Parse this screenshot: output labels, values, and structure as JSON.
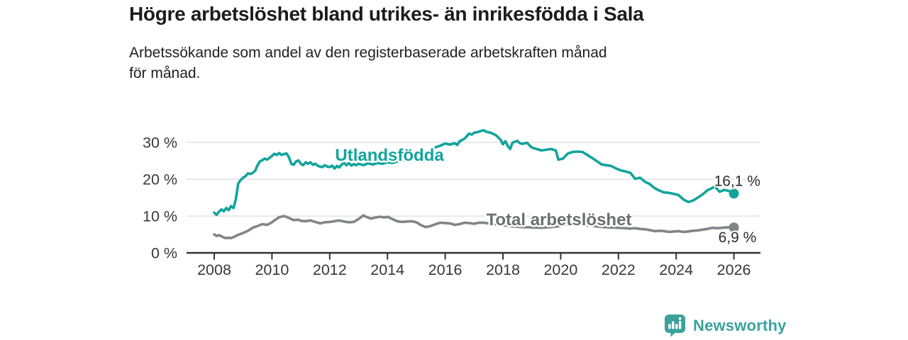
{
  "header": {
    "title": "Högre arbetslöshet bland utrikes- än inrikesfödda i Sala",
    "subtitle": "Arbetssökande som andel av den registerbaserade arbetskraften månad för månad."
  },
  "footer": {
    "brand": "Newsworthy",
    "brand_color": "#3ba29b",
    "logo_icon": "speech-bubble-bar-chart"
  },
  "colors": {
    "teal_series": "#12a49c",
    "gray_series": "#828487",
    "gray_label": "#6d6e71",
    "gridline": "#dcdcdc",
    "axis": "#333333",
    "tick_text": "#383838",
    "value_text": "#2d2d2d"
  },
  "chart_data": {
    "type": "line",
    "title": "Högre arbetslöshet bland utrikes- än inrikesfödda i Sala",
    "subtitle": "Arbetssökande som andel av den registerbaserade arbetskraften månad för månad.",
    "xlabel": "",
    "ylabel": "",
    "grid": "horizontal",
    "legend_position": "inline-labels",
    "x_axis": {
      "range": [
        2007.05,
        2026.92
      ],
      "ticks": [
        {
          "value": 2008,
          "label": "2008"
        },
        {
          "value": 2010,
          "label": "2010"
        },
        {
          "value": 2012,
          "label": "2012"
        },
        {
          "value": 2014,
          "label": "2014"
        },
        {
          "value": 2016,
          "label": "2016"
        },
        {
          "value": 2018,
          "label": "2018"
        },
        {
          "value": 2020,
          "label": "2020"
        },
        {
          "value": 2022,
          "label": "2022"
        },
        {
          "value": 2024,
          "label": "2024"
        },
        {
          "value": 2026,
          "label": "2026"
        }
      ]
    },
    "y_axis": {
      "range": [
        0,
        35
      ],
      "unit": "%",
      "ticks": [
        {
          "value": 0,
          "label": "0 %"
        },
        {
          "value": 10,
          "label": "10 %"
        },
        {
          "value": 20,
          "label": "20 %"
        },
        {
          "value": 30,
          "label": "30 %"
        }
      ]
    },
    "series": [
      {
        "name": "Utlandsfödda",
        "color": "#12a49c",
        "label_color": "#12a49c",
        "label_pos": {
          "x": 2014.07,
          "y": 26.5
        },
        "end_label": "16,1 %",
        "end_label_offset": {
          "dx": -28,
          "dy": -11
        },
        "points": [
          [
            2008.0,
            10.9
          ],
          [
            2008.08,
            10.3
          ],
          [
            2008.17,
            11.2
          ],
          [
            2008.25,
            11.8
          ],
          [
            2008.33,
            11.3
          ],
          [
            2008.42,
            12.2
          ],
          [
            2008.5,
            11.6
          ],
          [
            2008.58,
            12.7
          ],
          [
            2008.67,
            12.2
          ],
          [
            2008.75,
            14.6
          ],
          [
            2008.83,
            18.8
          ],
          [
            2008.92,
            19.8
          ],
          [
            2009.0,
            20.4
          ],
          [
            2009.08,
            20.8
          ],
          [
            2009.17,
            21.6
          ],
          [
            2009.25,
            21.4
          ],
          [
            2009.33,
            21.7
          ],
          [
            2009.42,
            22.3
          ],
          [
            2009.5,
            23.8
          ],
          [
            2009.58,
            24.8
          ],
          [
            2009.67,
            25.2
          ],
          [
            2009.75,
            25.6
          ],
          [
            2009.83,
            25.3
          ],
          [
            2009.92,
            25.8
          ],
          [
            2010.0,
            26.3
          ],
          [
            2010.08,
            26.9
          ],
          [
            2010.17,
            26.6
          ],
          [
            2010.25,
            27.1
          ],
          [
            2010.33,
            26.6
          ],
          [
            2010.42,
            26.8
          ],
          [
            2010.5,
            27.0
          ],
          [
            2010.58,
            26.1
          ],
          [
            2010.67,
            24.2
          ],
          [
            2010.75,
            23.9
          ],
          [
            2010.83,
            24.8
          ],
          [
            2010.92,
            25.1
          ],
          [
            2011.0,
            24.2
          ],
          [
            2011.08,
            23.8
          ],
          [
            2011.17,
            24.6
          ],
          [
            2011.25,
            24.2
          ],
          [
            2011.33,
            24.6
          ],
          [
            2011.42,
            23.9
          ],
          [
            2011.5,
            24.2
          ],
          [
            2011.58,
            23.7
          ],
          [
            2011.67,
            23.4
          ],
          [
            2011.75,
            23.3
          ],
          [
            2011.83,
            23.8
          ],
          [
            2011.92,
            23.4
          ],
          [
            2012.0,
            23.3
          ],
          [
            2012.08,
            23.7
          ],
          [
            2012.17,
            22.9
          ],
          [
            2012.25,
            23.6
          ],
          [
            2012.33,
            23.2
          ],
          [
            2012.42,
            24.0
          ],
          [
            2012.5,
            24.4
          ],
          [
            2012.58,
            23.8
          ],
          [
            2012.67,
            24.4
          ],
          [
            2012.75,
            23.7
          ],
          [
            2012.83,
            24.1
          ],
          [
            2012.92,
            23.8
          ],
          [
            2013.0,
            24.2
          ],
          [
            2013.17,
            23.8
          ],
          [
            2013.33,
            24.3
          ],
          [
            2013.5,
            24.0
          ],
          [
            2013.67,
            24.4
          ],
          [
            2013.83,
            24.2
          ],
          [
            2014.0,
            24.6
          ],
          [
            2014.17,
            24.4
          ],
          [
            2014.33,
            24.8
          ],
          [
            2014.5,
            25.1
          ],
          [
            2014.67,
            25.4
          ],
          [
            2014.83,
            25.2
          ],
          [
            2015.0,
            25.8
          ],
          [
            2015.17,
            26.4
          ],
          [
            2015.33,
            27.2
          ],
          [
            2015.5,
            28.0
          ],
          [
            2015.67,
            28.7
          ],
          [
            2015.83,
            29.1
          ],
          [
            2016.0,
            29.7
          ],
          [
            2016.17,
            29.4
          ],
          [
            2016.33,
            29.8
          ],
          [
            2016.42,
            29.3
          ],
          [
            2016.5,
            30.3
          ],
          [
            2016.67,
            31.0
          ],
          [
            2016.83,
            32.4
          ],
          [
            2016.92,
            32.1
          ],
          [
            2017.0,
            32.6
          ],
          [
            2017.17,
            32.9
          ],
          [
            2017.33,
            33.3
          ],
          [
            2017.42,
            32.9
          ],
          [
            2017.58,
            32.6
          ],
          [
            2017.75,
            32.0
          ],
          [
            2017.83,
            31.4
          ],
          [
            2017.92,
            30.7
          ],
          [
            2018.0,
            29.5
          ],
          [
            2018.08,
            30.3
          ],
          [
            2018.17,
            29.0
          ],
          [
            2018.25,
            28.2
          ],
          [
            2018.33,
            29.9
          ],
          [
            2018.42,
            30.2
          ],
          [
            2018.5,
            30.4
          ],
          [
            2018.58,
            29.8
          ],
          [
            2018.67,
            29.6
          ],
          [
            2018.83,
            29.9
          ],
          [
            2019.0,
            28.6
          ],
          [
            2019.17,
            28.2
          ],
          [
            2019.33,
            27.8
          ],
          [
            2019.5,
            28.0
          ],
          [
            2019.67,
            28.2
          ],
          [
            2019.83,
            27.8
          ],
          [
            2019.92,
            25.3
          ],
          [
            2020.08,
            25.6
          ],
          [
            2020.25,
            27.0
          ],
          [
            2020.42,
            27.4
          ],
          [
            2020.58,
            27.5
          ],
          [
            2020.75,
            27.4
          ],
          [
            2020.92,
            26.6
          ],
          [
            2021.08,
            25.8
          ],
          [
            2021.25,
            24.9
          ],
          [
            2021.42,
            24.0
          ],
          [
            2021.58,
            23.8
          ],
          [
            2021.75,
            23.6
          ],
          [
            2021.92,
            22.9
          ],
          [
            2022.08,
            22.4
          ],
          [
            2022.25,
            22.1
          ],
          [
            2022.42,
            21.7
          ],
          [
            2022.58,
            20.1
          ],
          [
            2022.75,
            20.4
          ],
          [
            2022.92,
            19.3
          ],
          [
            2023.08,
            18.7
          ],
          [
            2023.25,
            17.6
          ],
          [
            2023.42,
            16.9
          ],
          [
            2023.58,
            16.4
          ],
          [
            2023.75,
            16.3
          ],
          [
            2023.92,
            16.0
          ],
          [
            2024.08,
            15.7
          ],
          [
            2024.25,
            14.5
          ],
          [
            2024.42,
            13.8
          ],
          [
            2024.58,
            14.2
          ],
          [
            2024.75,
            15.0
          ],
          [
            2024.92,
            15.9
          ],
          [
            2025.08,
            17.0
          ],
          [
            2025.25,
            17.6
          ],
          [
            2025.33,
            18.1
          ],
          [
            2025.5,
            16.6
          ],
          [
            2025.67,
            17.1
          ],
          [
            2025.83,
            16.8
          ],
          [
            2026.0,
            16.1
          ]
        ]
      },
      {
        "name": "Total arbetslöshet",
        "color": "#828487",
        "label_color": "#6d6e71",
        "label_pos": {
          "x": 2019.94,
          "y": 9.0
        },
        "end_label": "6,9 %",
        "end_label_offset": {
          "dx": -22,
          "dy": 21
        },
        "points": [
          [
            2008.0,
            5.0
          ],
          [
            2008.08,
            4.6
          ],
          [
            2008.17,
            4.8
          ],
          [
            2008.25,
            4.5
          ],
          [
            2008.33,
            4.2
          ],
          [
            2008.42,
            4.0
          ],
          [
            2008.5,
            4.1
          ],
          [
            2008.58,
            4.0
          ],
          [
            2008.67,
            4.3
          ],
          [
            2008.83,
            4.9
          ],
          [
            2009.0,
            5.4
          ],
          [
            2009.17,
            6.0
          ],
          [
            2009.33,
            6.8
          ],
          [
            2009.5,
            7.3
          ],
          [
            2009.67,
            7.8
          ],
          [
            2009.83,
            7.6
          ],
          [
            2010.0,
            8.3
          ],
          [
            2010.08,
            8.8
          ],
          [
            2010.25,
            9.7
          ],
          [
            2010.42,
            10.0
          ],
          [
            2010.58,
            9.5
          ],
          [
            2010.75,
            8.9
          ],
          [
            2010.92,
            9.0
          ],
          [
            2011.0,
            8.7
          ],
          [
            2011.17,
            8.6
          ],
          [
            2011.33,
            8.8
          ],
          [
            2011.5,
            8.4
          ],
          [
            2011.67,
            8.0
          ],
          [
            2011.83,
            8.3
          ],
          [
            2012.0,
            8.4
          ],
          [
            2012.17,
            8.6
          ],
          [
            2012.33,
            8.8
          ],
          [
            2012.5,
            8.5
          ],
          [
            2012.67,
            8.3
          ],
          [
            2012.83,
            8.4
          ],
          [
            2013.0,
            9.2
          ],
          [
            2013.17,
            10.2
          ],
          [
            2013.25,
            9.8
          ],
          [
            2013.42,
            9.3
          ],
          [
            2013.58,
            9.6
          ],
          [
            2013.75,
            9.8
          ],
          [
            2013.92,
            9.6
          ],
          [
            2014.0,
            9.8
          ],
          [
            2014.17,
            9.2
          ],
          [
            2014.33,
            8.6
          ],
          [
            2014.5,
            8.4
          ],
          [
            2014.67,
            8.5
          ],
          [
            2014.83,
            8.6
          ],
          [
            2015.0,
            8.3
          ],
          [
            2015.17,
            7.5
          ],
          [
            2015.33,
            7.0
          ],
          [
            2015.5,
            7.3
          ],
          [
            2015.67,
            7.8
          ],
          [
            2015.83,
            8.2
          ],
          [
            2016.0,
            8.1
          ],
          [
            2016.17,
            8.0
          ],
          [
            2016.33,
            7.6
          ],
          [
            2016.5,
            7.8
          ],
          [
            2016.67,
            8.2
          ],
          [
            2016.83,
            8.1
          ],
          [
            2017.0,
            7.9
          ],
          [
            2017.17,
            8.2
          ],
          [
            2017.33,
            8.2
          ],
          [
            2017.5,
            8.0
          ],
          [
            2017.67,
            7.8
          ],
          [
            2018.0,
            7.5
          ],
          [
            2018.33,
            7.2
          ],
          [
            2018.67,
            7.0
          ],
          [
            2019.0,
            6.9
          ],
          [
            2019.33,
            6.8
          ],
          [
            2019.67,
            7.0
          ],
          [
            2020.0,
            7.3
          ],
          [
            2020.33,
            7.9
          ],
          [
            2020.67,
            7.8
          ],
          [
            2021.0,
            7.4
          ],
          [
            2021.33,
            7.1
          ],
          [
            2021.67,
            6.9
          ],
          [
            2022.0,
            6.8
          ],
          [
            2022.42,
            6.6
          ],
          [
            2022.58,
            6.7
          ],
          [
            2022.75,
            6.5
          ],
          [
            2022.92,
            6.4
          ],
          [
            2023.08,
            6.2
          ],
          [
            2023.25,
            5.9
          ],
          [
            2023.42,
            6.0
          ],
          [
            2023.58,
            5.9
          ],
          [
            2023.75,
            5.7
          ],
          [
            2023.92,
            5.8
          ],
          [
            2024.08,
            5.9
          ],
          [
            2024.25,
            5.7
          ],
          [
            2024.42,
            5.8
          ],
          [
            2024.58,
            6.0
          ],
          [
            2024.75,
            6.1
          ],
          [
            2024.92,
            6.3
          ],
          [
            2025.08,
            6.5
          ],
          [
            2025.25,
            6.8
          ],
          [
            2025.42,
            6.7
          ],
          [
            2025.58,
            6.8
          ],
          [
            2025.75,
            6.9
          ],
          [
            2025.92,
            7.0
          ],
          [
            2026.0,
            6.9
          ]
        ]
      }
    ]
  }
}
